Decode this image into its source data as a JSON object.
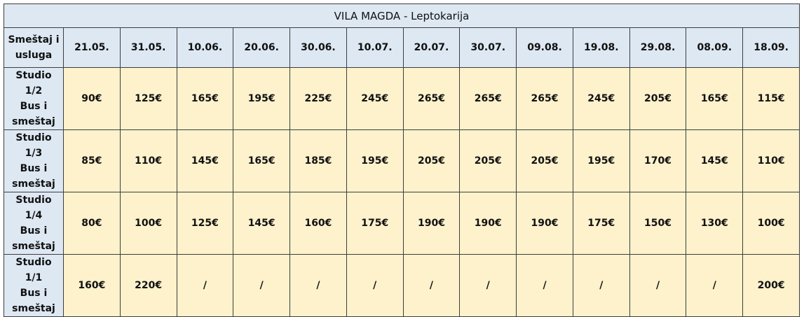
{
  "title": "VILA MAGDA - Leptokarija",
  "corner_header": [
    "Smeštaj i",
    "usluga"
  ],
  "dates": [
    "21.05.",
    "31.05.",
    "10.06.",
    "20.06.",
    "30.06.",
    "10.07.",
    "20.07.",
    "30.07.",
    "09.08.",
    "19.08.",
    "29.08.",
    "08.09.",
    "18.09."
  ],
  "rows": [
    {
      "label": [
        "Studio 1/2",
        "Bus i",
        "smeštaj"
      ],
      "prices": [
        "90€",
        "125€",
        "165€",
        "195€",
        "225€",
        "245€",
        "265€",
        "265€",
        "265€",
        "245€",
        "205€",
        "165€",
        "115€"
      ]
    },
    {
      "label": [
        "Studio 1/3",
        "Bus i",
        "smeštaj"
      ],
      "prices": [
        "85€",
        "110€",
        "145€",
        "165€",
        "185€",
        "195€",
        "205€",
        "205€",
        "205€",
        "195€",
        "170€",
        "145€",
        "110€"
      ]
    },
    {
      "label": [
        "Studio 1/4",
        "Bus i",
        "smeštaj"
      ],
      "prices": [
        "80€",
        "100€",
        "125€",
        "145€",
        "160€",
        "175€",
        "190€",
        "190€",
        "190€",
        "175€",
        "150€",
        "130€",
        "100€"
      ]
    },
    {
      "label": [
        "Studio 1/1",
        "Bus i",
        "smeštaj"
      ],
      "prices": [
        "160€",
        "220€",
        "/",
        "/",
        "/",
        "/",
        "/",
        "/",
        "/",
        "/",
        "/",
        "/",
        "200€"
      ]
    }
  ]
}
